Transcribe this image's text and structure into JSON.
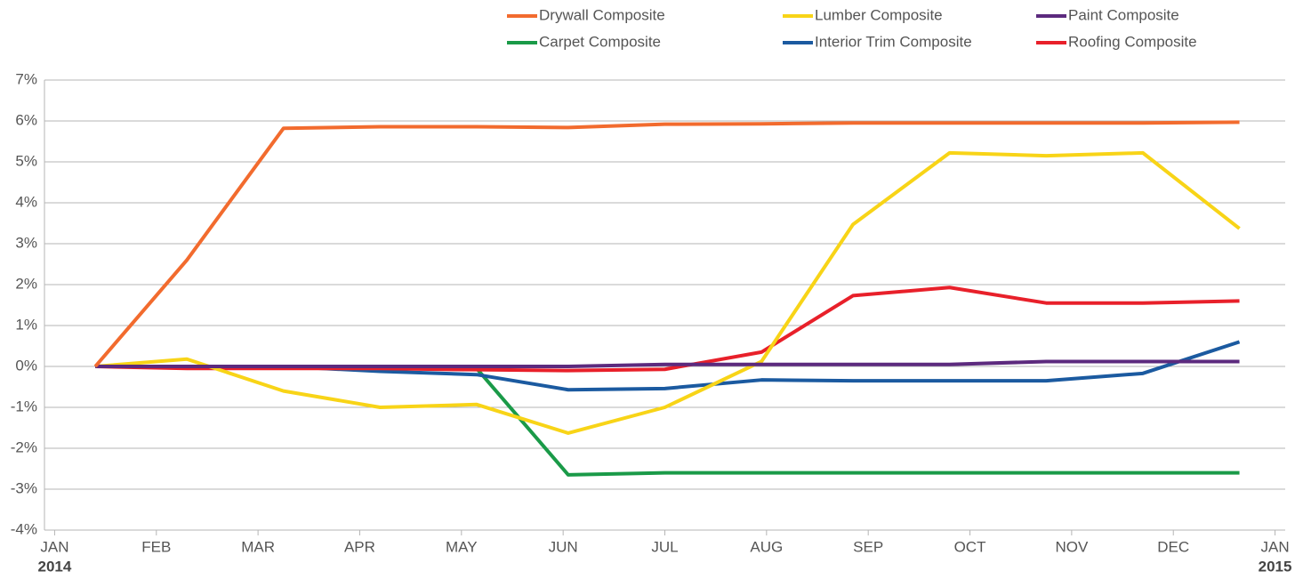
{
  "chart_data": {
    "type": "line",
    "x_tick_years": [
      "2014",
      "2015"
    ],
    "x": [
      0.4,
      1.3,
      2.25,
      3.2,
      4.15,
      5.05,
      6,
      6.95,
      7.85,
      8.8,
      9.75,
      10.7,
      11.65
    ],
    "xlim": [
      -0.1,
      12.1
    ],
    "xticks": [
      {
        "value": 0,
        "label": "JAN"
      },
      {
        "value": 1,
        "label": "FEB"
      },
      {
        "value": 2,
        "label": "MAR"
      },
      {
        "value": 3,
        "label": "APR"
      },
      {
        "value": 4,
        "label": "MAY"
      },
      {
        "value": 5,
        "label": "JUN"
      },
      {
        "value": 6,
        "label": "JUL"
      },
      {
        "value": 7,
        "label": "AUG"
      },
      {
        "value": 8,
        "label": "SEP"
      },
      {
        "value": 9,
        "label": "OCT"
      },
      {
        "value": 10,
        "label": "NOV"
      },
      {
        "value": 11,
        "label": "DEC"
      },
      {
        "value": 12,
        "label": "JAN"
      }
    ],
    "ylim": [
      -4,
      7
    ],
    "yticks": [
      {
        "value": -4,
        "label": "-4%"
      },
      {
        "value": -3,
        "label": "-3%"
      },
      {
        "value": -2,
        "label": "-2%"
      },
      {
        "value": -1,
        "label": "-1%"
      },
      {
        "value": 0,
        "label": "0%"
      },
      {
        "value": 1,
        "label": "1%"
      },
      {
        "value": 2,
        "label": "2%"
      },
      {
        "value": 3,
        "label": "3%"
      },
      {
        "value": 4,
        "label": "4%"
      },
      {
        "value": 5,
        "label": "5%"
      },
      {
        "value": 6,
        "label": "6%"
      },
      {
        "value": 7,
        "label": "7%"
      }
    ],
    "grid": true,
    "legend": "top-right",
    "series": [
      {
        "name": "Drywall Composite",
        "color": "#f26b2e",
        "values": [
          0,
          2.6,
          5.82,
          5.86,
          5.86,
          5.84,
          5.92,
          5.93,
          5.95,
          5.95,
          5.95,
          5.95,
          5.97
        ]
      },
      {
        "name": "Lumber Composite",
        "color": "#f8d417",
        "values": [
          0,
          0.18,
          -0.6,
          -1.0,
          -0.93,
          -1.63,
          -1.0,
          0.12,
          3.47,
          5.22,
          5.15,
          5.22,
          3.37
        ]
      },
      {
        "name": "Paint Composite",
        "color": "#5c2a7e",
        "values": [
          0,
          0,
          0,
          0,
          0,
          0,
          0.05,
          0.05,
          0.05,
          0.05,
          0.12,
          0.12,
          0.12
        ]
      },
      {
        "name": "Carpet Composite",
        "color": "#1a9a48",
        "values": [
          0,
          0,
          0,
          0,
          -0.05,
          -2.65,
          -2.6,
          -2.6,
          -2.6,
          -2.6,
          -2.6,
          -2.6,
          -2.6
        ]
      },
      {
        "name": "Interior Trim Composite",
        "color": "#1b5aa0",
        "values": [
          0,
          0,
          0,
          -0.12,
          -0.2,
          -0.57,
          -0.54,
          -0.33,
          -0.35,
          -0.35,
          -0.35,
          -0.17,
          0.6
        ]
      },
      {
        "name": "Roofing Composite",
        "color": "#e8202a",
        "values": [
          0,
          -0.05,
          -0.05,
          -0.05,
          -0.08,
          -0.1,
          -0.07,
          0.35,
          1.73,
          1.93,
          1.55,
          1.55,
          1.6
        ]
      }
    ]
  }
}
